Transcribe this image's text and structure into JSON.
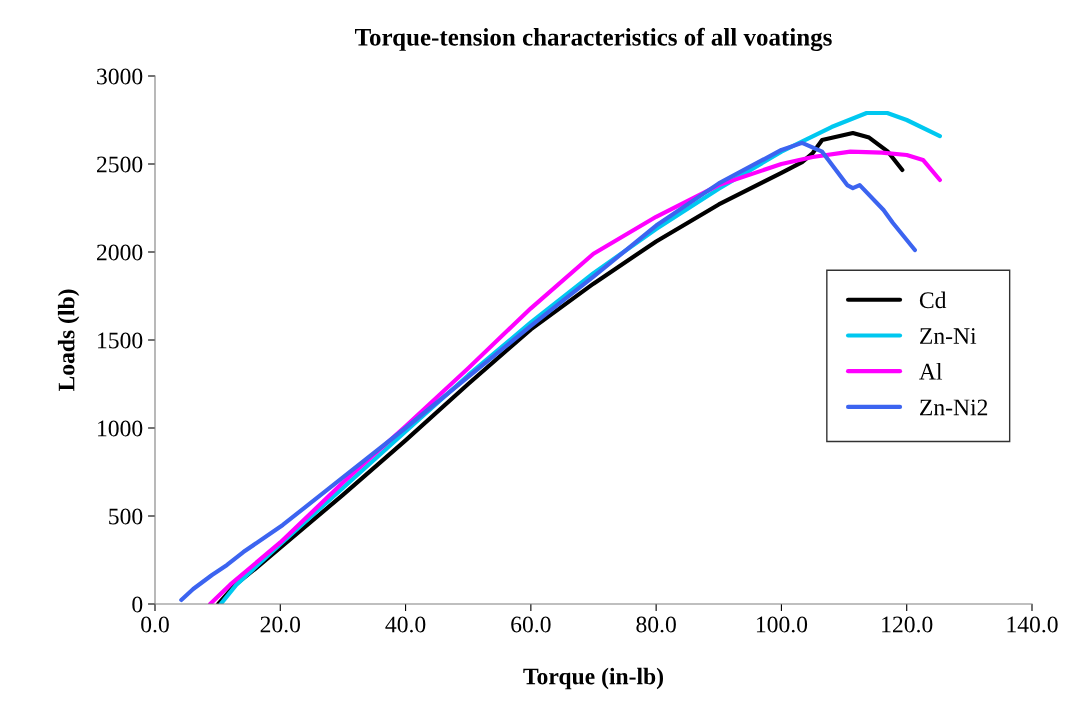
{
  "chart_data": {
    "type": "line",
    "title": "Torque-tension characteristics of all voatings",
    "xlabel": "Torque (in-lb)",
    "ylabel": "Loads (lb)",
    "xlim": [
      0,
      140
    ],
    "ylim": [
      0,
      3000
    ],
    "xticks": [
      {
        "value": 0,
        "label": "0.0"
      },
      {
        "value": 20,
        "label": "20.0"
      },
      {
        "value": 40,
        "label": "40.0"
      },
      {
        "value": 60,
        "label": "60.0"
      },
      {
        "value": 80,
        "label": "80.0"
      },
      {
        "value": 100,
        "label": "100.0"
      },
      {
        "value": 120,
        "label": "120.0"
      },
      {
        "value": 140,
        "label": "140.0"
      }
    ],
    "yticks": [
      0,
      500,
      1000,
      1500,
      2000,
      2500,
      3000
    ],
    "grid": false,
    "legend": "right",
    "marker": "none",
    "line_style": "solid",
    "series": [
      {
        "name": "Cd",
        "color": "#000000",
        "x": [
          10.1,
          12.8,
          16,
          20,
          30,
          40,
          50,
          60,
          70,
          80,
          90,
          100,
          103.3,
          105,
          106.5,
          111.4,
          114,
          117,
          119.3
        ],
        "values": [
          0,
          108,
          200,
          320,
          620,
          930,
          1250,
          1560,
          1820,
          2060,
          2270,
          2450,
          2511,
          2562,
          2636,
          2676,
          2650,
          2570,
          2466
        ]
      },
      {
        "name": "Zn-Ni",
        "color": "#00c8f0",
        "x": [
          10.5,
          13,
          20,
          30,
          40,
          50,
          60,
          70,
          80,
          90,
          100,
          104,
          108,
          113.6,
          116.9,
          120,
          125.3
        ],
        "values": [
          0,
          110,
          340,
          660,
          980,
          1300,
          1600,
          1880,
          2130,
          2360,
          2570,
          2640,
          2710,
          2790,
          2790,
          2750,
          2659
        ]
      },
      {
        "name": "Al",
        "color": "#ff00ff",
        "x": [
          8.8,
          12,
          20,
          30,
          40,
          50,
          60,
          70,
          80,
          90,
          100,
          105,
          111,
          116,
          120,
          122.6,
          125.3
        ],
        "values": [
          0,
          110,
          350,
          690,
          1010,
          1340,
          1680,
          1990,
          2200,
          2380,
          2500,
          2540,
          2570,
          2565,
          2551,
          2523,
          2409
        ]
      },
      {
        "name": "Zn-Ni2",
        "color": "#3c64f0",
        "x": [
          4.2,
          6.1,
          9.1,
          11.5,
          14.1,
          20.4,
          30,
          40,
          50,
          60,
          70,
          80,
          90,
          100,
          103.3,
          106.5,
          110.5,
          111.4,
          112.5,
          116.3,
          117.8,
          121.3
        ],
        "values": [
          23,
          85,
          165,
          222,
          295,
          449,
          720,
          1000,
          1290,
          1580,
          1860,
          2150,
          2390,
          2580,
          2620,
          2570,
          2380,
          2363,
          2380,
          2239,
          2165,
          2011
        ]
      }
    ]
  }
}
